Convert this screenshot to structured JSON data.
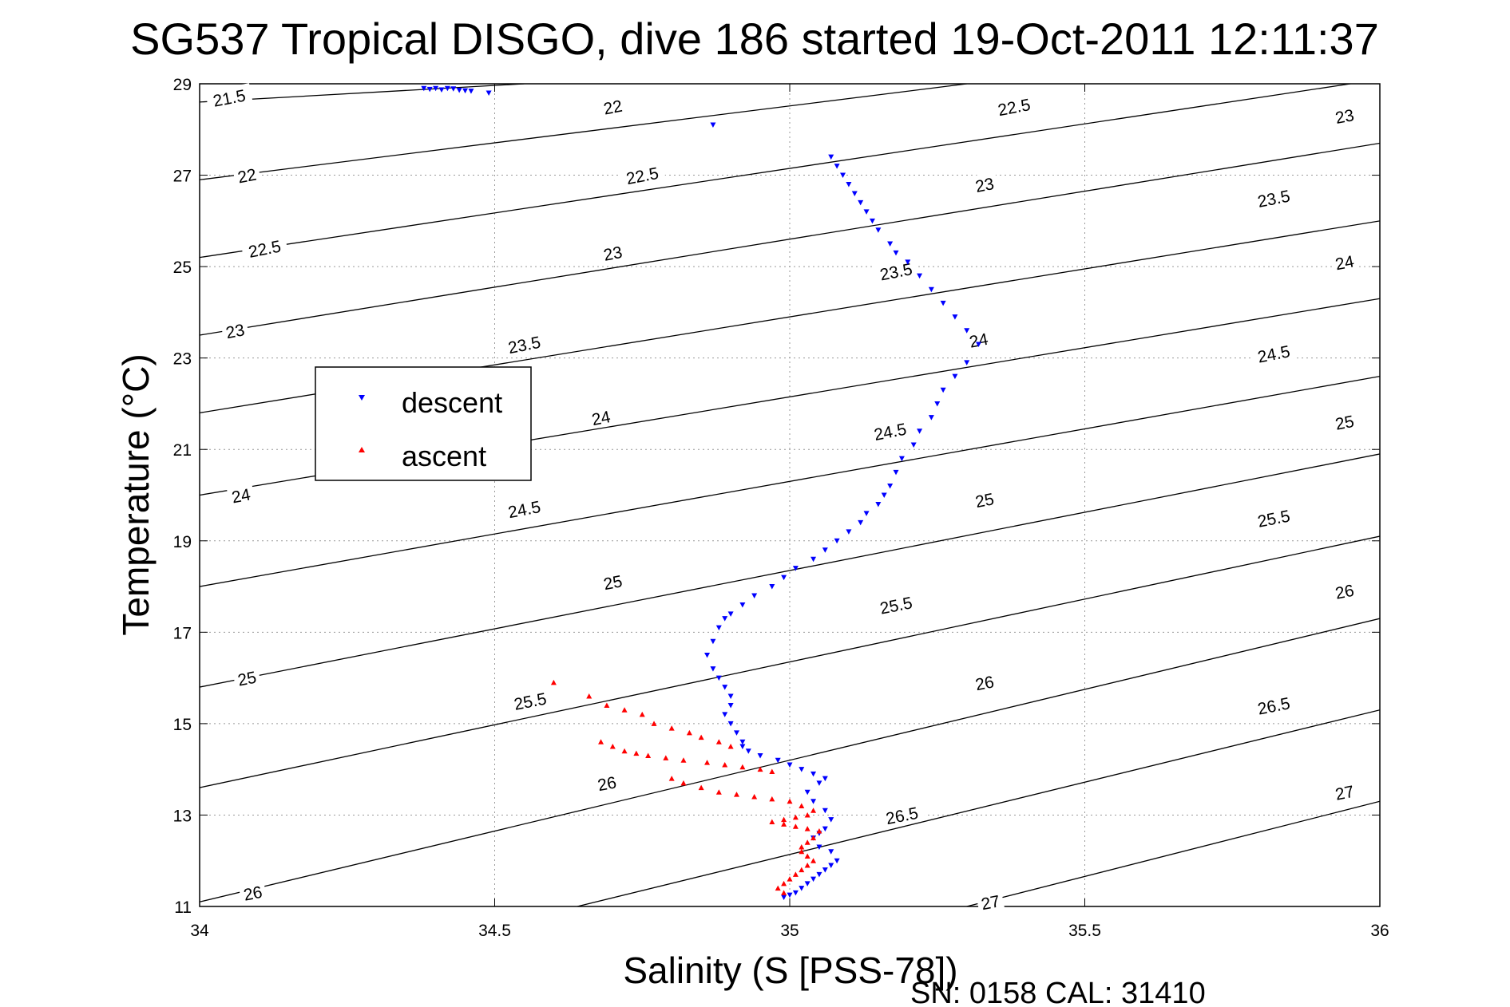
{
  "chart_data": {
    "type": "scatter",
    "title": "SG537 Tropical DISGO, dive 186 started 19-Oct-2011 12:11:37",
    "xlabel": "Salinity (S [PSS-78])",
    "ylabel": "Temperature (°C)",
    "xlim": [
      34,
      36
    ],
    "ylim": [
      11,
      29
    ],
    "xticks": [
      34,
      34.5,
      35,
      35.5,
      36
    ],
    "xtick_labels": [
      "34",
      "34.5",
      "35",
      "35.5",
      "36"
    ],
    "yticks": [
      11,
      13,
      15,
      17,
      19,
      21,
      23,
      25,
      27,
      29
    ],
    "ytick_labels": [
      "11",
      "13",
      "15",
      "17",
      "19",
      "21",
      "23",
      "25",
      "27",
      "29"
    ],
    "grid": true,
    "footer": "SN: 0158  CAL: 31410",
    "legend": {
      "placement": "left",
      "entries": [
        {
          "label": "descent",
          "color": "#0000ff",
          "marker": "triangle-down"
        },
        {
          "label": "ascent",
          "color": "#ff0000",
          "marker": "triangle-up"
        }
      ]
    },
    "density_contours": [
      {
        "sigma": 21.5,
        "label": "21.5",
        "p0": [
          34,
          28.6
        ],
        "p1": [
          34.55,
          29
        ]
      },
      {
        "sigma": 22,
        "label": "22",
        "p0": [
          34,
          26.9
        ],
        "p1": [
          35.3,
          29
        ]
      },
      {
        "sigma": 22.5,
        "label": "22.5",
        "p0": [
          34,
          25.2
        ],
        "p1": [
          35.95,
          29
        ]
      },
      {
        "sigma": 23,
        "label": "23",
        "p0": [
          34,
          23.5
        ],
        "p1": [
          36,
          27.7
        ]
      },
      {
        "sigma": 23.5,
        "label": "23.5",
        "p0": [
          34,
          21.8
        ],
        "p1": [
          36,
          26.0
        ]
      },
      {
        "sigma": 24,
        "label": "24",
        "p0": [
          34,
          20.0
        ],
        "p1": [
          36,
          24.3
        ]
      },
      {
        "sigma": 24.5,
        "label": "24.5",
        "p0": [
          34,
          18.0
        ],
        "p1": [
          36,
          22.6
        ]
      },
      {
        "sigma": 25,
        "label": "25",
        "p0": [
          34,
          15.8
        ],
        "p1": [
          36,
          20.9
        ]
      },
      {
        "sigma": 25.5,
        "label": "25.5",
        "p0": [
          34,
          13.6
        ],
        "p1": [
          36,
          19.1
        ]
      },
      {
        "sigma": 26,
        "label": "26",
        "p0": [
          34,
          11.1
        ],
        "p1": [
          36,
          17.3
        ]
      },
      {
        "sigma": 26.5,
        "label": "26.5",
        "p0": [
          34.64,
          11
        ],
        "p1": [
          36,
          15.3
        ]
      },
      {
        "sigma": 27,
        "label": "27",
        "p0": [
          35.3,
          11
        ],
        "p1": [
          36,
          13.3
        ]
      }
    ],
    "contour_labels": [
      {
        "text": "21.5",
        "pos": [
          34.05,
          28.7
        ]
      },
      {
        "text": "22",
        "pos": [
          34.7,
          28.5
        ]
      },
      {
        "text": "22.5",
        "pos": [
          35.38,
          28.5
        ]
      },
      {
        "text": "23",
        "pos": [
          35.94,
          28.3
        ]
      },
      {
        "text": "22",
        "pos": [
          34.08,
          27.0
        ]
      },
      {
        "text": "22.5",
        "pos": [
          34.75,
          27.0
        ]
      },
      {
        "text": "23",
        "pos": [
          35.33,
          26.8
        ]
      },
      {
        "text": "23.5",
        "pos": [
          35.82,
          26.5
        ]
      },
      {
        "text": "22.5",
        "pos": [
          34.11,
          25.4
        ]
      },
      {
        "text": "23",
        "pos": [
          34.7,
          25.3
        ]
      },
      {
        "text": "23.5",
        "pos": [
          35.18,
          24.9
        ]
      },
      {
        "text": "24",
        "pos": [
          35.94,
          25.1
        ]
      },
      {
        "text": "23",
        "pos": [
          34.06,
          23.6
        ]
      },
      {
        "text": "23.5",
        "pos": [
          34.55,
          23.3
        ]
      },
      {
        "text": "24",
        "pos": [
          35.32,
          23.4
        ]
      },
      {
        "text": "24.5",
        "pos": [
          35.82,
          23.1
        ]
      },
      {
        "text": "24",
        "pos": [
          34.68,
          21.7
        ]
      },
      {
        "text": "24.5",
        "pos": [
          35.17,
          21.4
        ]
      },
      {
        "text": "25",
        "pos": [
          35.94,
          21.6
        ]
      },
      {
        "text": "24",
        "pos": [
          34.07,
          20.0
        ]
      },
      {
        "text": "24.5",
        "pos": [
          34.55,
          19.7
        ]
      },
      {
        "text": "25",
        "pos": [
          35.33,
          19.9
        ]
      },
      {
        "text": "25.5",
        "pos": [
          35.82,
          19.5
        ]
      },
      {
        "text": "25",
        "pos": [
          34.7,
          18.1
        ]
      },
      {
        "text": "25.5",
        "pos": [
          35.18,
          17.6
        ]
      },
      {
        "text": "26",
        "pos": [
          35.94,
          17.9
        ]
      },
      {
        "text": "25",
        "pos": [
          34.08,
          16.0
        ]
      },
      {
        "text": "25.5",
        "pos": [
          34.56,
          15.5
        ]
      },
      {
        "text": "26",
        "pos": [
          35.33,
          15.9
        ]
      },
      {
        "text": "26.5",
        "pos": [
          35.82,
          15.4
        ]
      },
      {
        "text": "26",
        "pos": [
          34.69,
          13.7
        ]
      },
      {
        "text": "26.5",
        "pos": [
          35.19,
          13.0
        ]
      },
      {
        "text": "27",
        "pos": [
          35.94,
          13.5
        ]
      },
      {
        "text": "26",
        "pos": [
          34.09,
          11.3
        ]
      },
      {
        "text": "27",
        "pos": [
          35.34,
          11.1
        ]
      }
    ],
    "series": [
      {
        "name": "descent",
        "color": "#0000ff",
        "marker": "triangle-down",
        "x": [
          34.38,
          34.39,
          34.4,
          34.41,
          34.42,
          34.43,
          34.44,
          34.45,
          34.46,
          34.49,
          34.87,
          35.07,
          35.08,
          35.09,
          35.1,
          35.11,
          35.12,
          35.13,
          35.14,
          35.15,
          35.17,
          35.18,
          35.2,
          35.22,
          35.24,
          35.26,
          35.28,
          35.3,
          35.32,
          35.3,
          35.28,
          35.26,
          35.25,
          35.24,
          35.22,
          35.21,
          35.19,
          35.18,
          35.17,
          35.16,
          35.15,
          35.13,
          35.12,
          35.1,
          35.08,
          35.06,
          35.04,
          35.01,
          34.99,
          34.97,
          34.94,
          34.92,
          34.9,
          34.89,
          34.88,
          34.87,
          34.86,
          34.87,
          34.88,
          34.89,
          34.9,
          34.9,
          34.89,
          34.9,
          34.91,
          34.92,
          34.92,
          34.93,
          34.95,
          34.98,
          35.0,
          35.02,
          35.04,
          35.06,
          35.05,
          35.03,
          35.04,
          35.06,
          35.07,
          35.06,
          35.05,
          35.04,
          35.05,
          35.07,
          35.08,
          35.07,
          35.06,
          35.05,
          35.04,
          35.03,
          35.02,
          35.01,
          35.0,
          34.99
        ],
        "y": [
          28.9,
          28.88,
          28.9,
          28.87,
          28.9,
          28.89,
          28.86,
          28.85,
          28.84,
          28.8,
          28.1,
          27.4,
          27.2,
          27.0,
          26.8,
          26.6,
          26.4,
          26.2,
          26.0,
          25.8,
          25.5,
          25.3,
          25.1,
          24.8,
          24.5,
          24.2,
          23.9,
          23.6,
          23.3,
          22.9,
          22.6,
          22.3,
          22.0,
          21.7,
          21.4,
          21.1,
          20.8,
          20.5,
          20.2,
          20.0,
          19.8,
          19.6,
          19.4,
          19.2,
          19.0,
          18.8,
          18.6,
          18.4,
          18.2,
          18.0,
          17.8,
          17.6,
          17.4,
          17.3,
          17.1,
          16.8,
          16.5,
          16.2,
          16.0,
          15.8,
          15.6,
          15.4,
          15.2,
          15.0,
          14.8,
          14.6,
          14.5,
          14.4,
          14.3,
          14.2,
          14.1,
          14.0,
          13.9,
          13.8,
          13.7,
          13.5,
          13.3,
          13.1,
          12.9,
          12.7,
          12.6,
          12.5,
          12.3,
          12.2,
          12.0,
          11.9,
          11.8,
          11.7,
          11.6,
          11.5,
          11.4,
          11.3,
          11.25,
          11.2
        ]
      },
      {
        "name": "ascent",
        "color": "#ff0000",
        "marker": "triangle-up",
        "x": [
          34.6,
          34.66,
          34.69,
          34.72,
          34.75,
          34.77,
          34.8,
          34.83,
          34.85,
          34.88,
          34.9,
          34.68,
          34.7,
          34.72,
          34.74,
          34.76,
          34.79,
          34.82,
          34.86,
          34.89,
          34.92,
          34.95,
          34.97,
          34.8,
          34.82,
          34.85,
          34.88,
          34.91,
          34.94,
          34.97,
          35.0,
          35.02,
          35.04,
          35.03,
          35.01,
          34.99,
          34.97,
          34.99,
          35.01,
          35.03,
          35.05,
          35.04,
          35.03,
          35.02,
          35.02,
          35.03,
          35.04,
          35.03,
          35.02,
          35.01,
          35.0,
          34.99,
          34.98,
          34.99
        ],
        "y": [
          15.9,
          15.6,
          15.4,
          15.3,
          15.2,
          15.0,
          14.9,
          14.8,
          14.7,
          14.6,
          14.5,
          14.6,
          14.5,
          14.4,
          14.35,
          14.3,
          14.25,
          14.2,
          14.15,
          14.1,
          14.05,
          14.0,
          13.95,
          13.8,
          13.7,
          13.6,
          13.5,
          13.45,
          13.4,
          13.35,
          13.3,
          13.2,
          13.1,
          13.0,
          12.95,
          12.9,
          12.85,
          12.8,
          12.75,
          12.7,
          12.65,
          12.5,
          12.4,
          12.3,
          12.2,
          12.1,
          12.0,
          11.9,
          11.8,
          11.7,
          11.6,
          11.5,
          11.4,
          11.3
        ]
      }
    ]
  }
}
